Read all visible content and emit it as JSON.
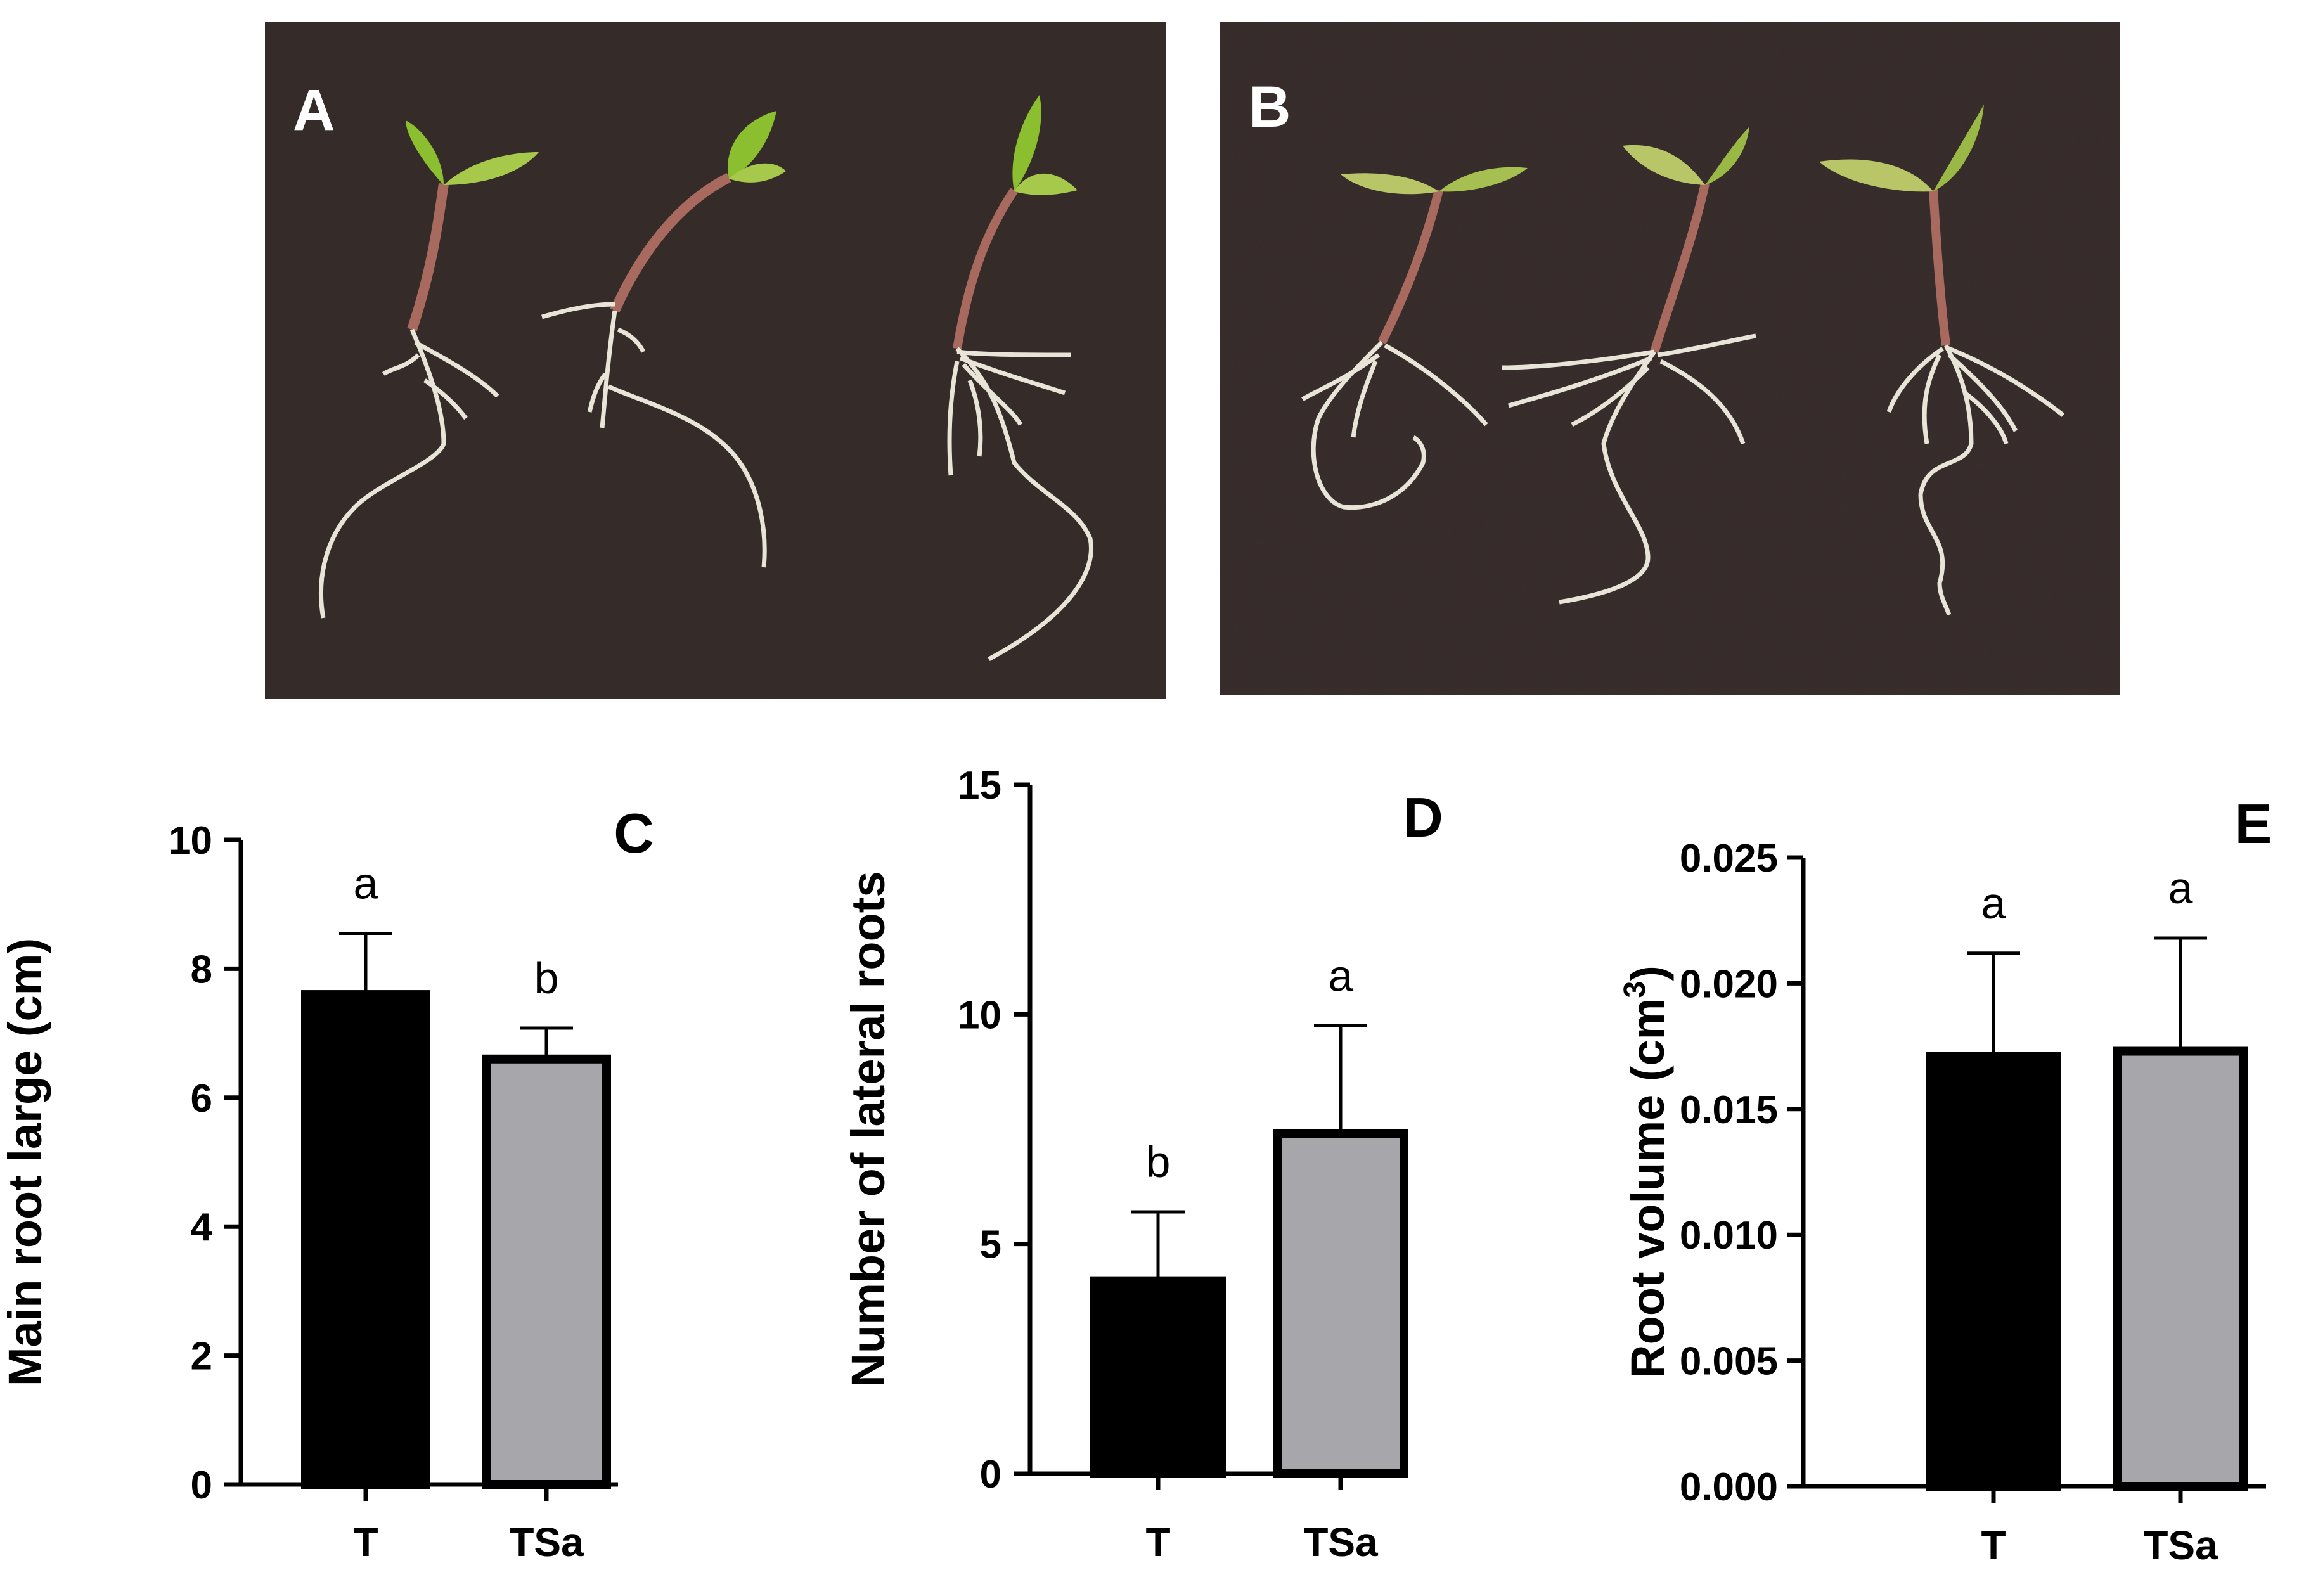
{
  "photos": [
    {
      "label": "A",
      "background": "#3a302e",
      "seedling_count": 3
    },
    {
      "label": "B",
      "background": "#3c3230",
      "seedling_count": 3
    }
  ],
  "chart_data": [
    {
      "type": "bar",
      "panel": "C",
      "categories": [
        "T",
        "TSa"
      ],
      "values": [
        7.6,
        6.6
      ],
      "errors": [
        0.95,
        0.48
      ],
      "significance": [
        "a",
        "b"
      ],
      "colors": [
        "#000000",
        "#a7a6ab"
      ],
      "ylabel": "Main root large (cm)",
      "ylim": [
        0,
        10
      ],
      "yticks": [
        "0",
        "2",
        "4",
        "6",
        "8",
        "10"
      ],
      "grid": false
    },
    {
      "type": "bar",
      "panel": "D",
      "categories": [
        "T",
        "TSa"
      ],
      "values": [
        4.2,
        7.4
      ],
      "errors": [
        1.5,
        2.35
      ],
      "significance": [
        "b",
        "a"
      ],
      "colors": [
        "#000000",
        "#a7a6ab"
      ],
      "ylabel": "Number of lateral roots",
      "ylim": [
        0,
        15
      ],
      "yticks": [
        "0",
        "5",
        "10",
        "15"
      ],
      "grid": false
    },
    {
      "type": "bar",
      "panel": "E",
      "categories": [
        "T",
        "TSa"
      ],
      "values": [
        0.0171,
        0.0173
      ],
      "errors": [
        0.0041,
        0.0045
      ],
      "significance": [
        "a",
        "a"
      ],
      "colors": [
        "#000000",
        "#a7a6ab"
      ],
      "ylabel": "Root volume (cm",
      "ylabel_sup": "3",
      "ylabel_end": ")",
      "ylim": [
        0,
        0.025
      ],
      "yticks": [
        "0.000",
        "0.005",
        "0.010",
        "0.015",
        "0.020",
        "0.025"
      ],
      "grid": false
    }
  ]
}
